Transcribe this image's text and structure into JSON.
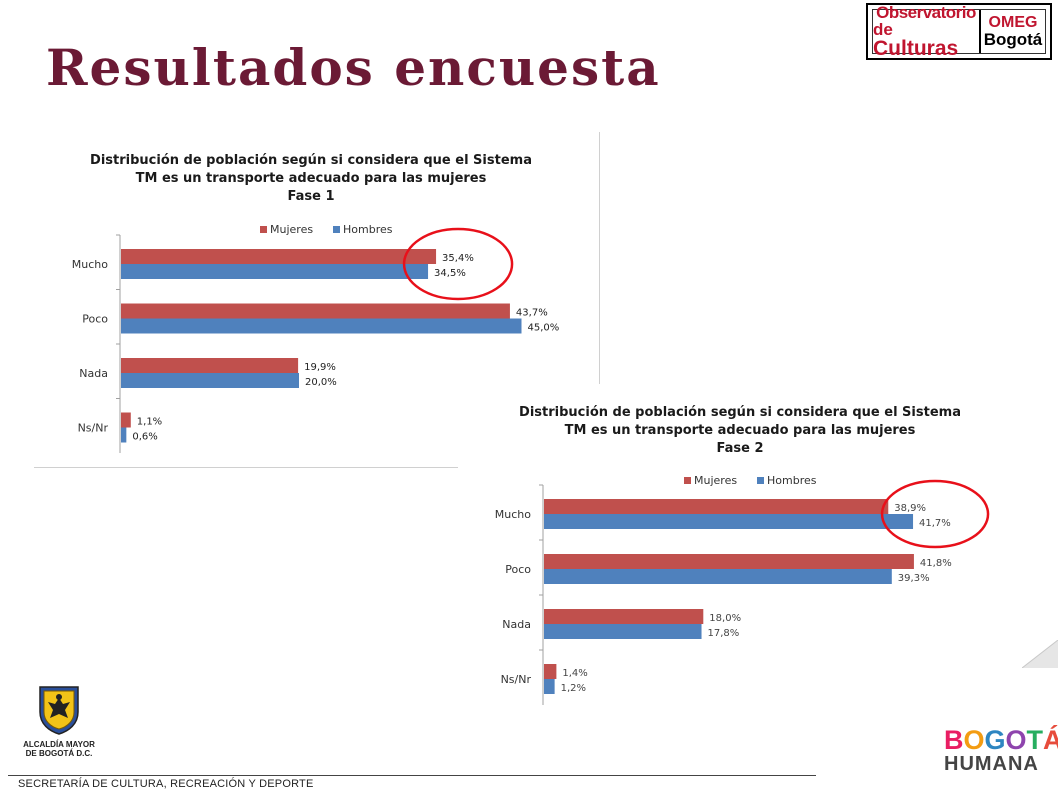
{
  "page_title": "Resultados encuesta",
  "logo": {
    "observatorio_line1": "Observatorio",
    "observatorio_line2_prefix": "de",
    "observatorio_line2_main": "Culturas",
    "omeg_line1": "OMEG",
    "omeg_line2": "Bogotá"
  },
  "footer": {
    "text": "SECRETARÍA DE CULTURA, RECREACIÓN Y DEPORTE",
    "alcaldia_line1": "ALCALDÍA MAYOR",
    "alcaldia_line2": "DE BOGOTÁ D.C.",
    "bogota_logo_top": "BOGOTÁ",
    "bogota_logo_bottom": "HUMANA"
  },
  "colors": {
    "mujeres": "#c0504d",
    "hombres": "#4f81bd",
    "highlight_circle": "#e8101a",
    "title": "#6b1a35"
  },
  "chart_data": [
    {
      "type": "bar",
      "orientation": "horizontal",
      "title": [
        "Distribución de población según si considera que el Sistema",
        "TM es un transporte adecuado para las mujeres",
        "Fase 1"
      ],
      "categories": [
        "Mucho",
        "Poco",
        "Nada",
        "Ns/Nr"
      ],
      "series": [
        {
          "name": "Mujeres",
          "values": [
            35.4,
            43.7,
            19.9,
            1.1
          ],
          "labels": [
            "35,4%",
            "43,7%",
            "19,9%",
            "1,1%"
          ]
        },
        {
          "name": "Hombres",
          "values": [
            34.5,
            45.0,
            20.0,
            0.6
          ],
          "labels": [
            "34,5%",
            "45,0%",
            "20,0%",
            "0,6%"
          ]
        }
      ],
      "xlim": [
        0,
        50
      ],
      "legend": "top",
      "grid": false,
      "highlighted_category": "Mucho"
    },
    {
      "type": "bar",
      "orientation": "horizontal",
      "title": [
        "Distribución de población según si considera que el Sistema",
        "TM es un transporte adecuado para las mujeres",
        "Fase 2"
      ],
      "categories": [
        "Mucho",
        "Poco",
        "Nada",
        "Ns/Nr"
      ],
      "series": [
        {
          "name": "Mujeres",
          "values": [
            38.9,
            41.8,
            18.0,
            1.4
          ],
          "labels": [
            "38,9%",
            "41,8%",
            "18,0%",
            "1,4%"
          ]
        },
        {
          "name": "Hombres",
          "values": [
            41.7,
            39.3,
            17.8,
            1.2
          ],
          "labels": [
            "41,7%",
            "39,3%",
            "17,8%",
            "1,2%"
          ]
        }
      ],
      "xlim": [
        0,
        50
      ],
      "legend": "top",
      "grid": false,
      "highlighted_category": "Mucho"
    }
  ]
}
